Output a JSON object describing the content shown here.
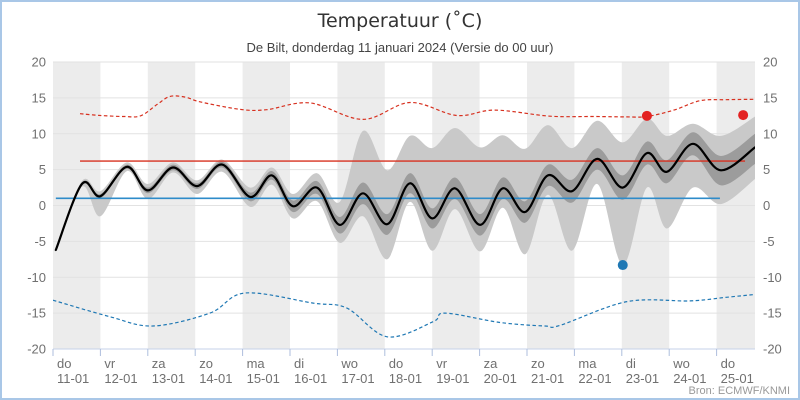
{
  "window": {
    "title": "Temperatuur (˚C)",
    "subtitle": "De Bilt, donderdag 11 januari 2024 (Versie do 00 uur)",
    "source": "Bron: ECMWF/KNMI"
  },
  "chart_data": {
    "type": "line",
    "title": "Temperatuur (˚C)",
    "subtitle": "De Bilt, donderdag 11 januari 2024 (Versie do 00 uur)",
    "source": "Bron: ECMWF/KNMI",
    "y_axis": {
      "min": -20,
      "max": 20,
      "tick_step": 5,
      "ticks": [
        20,
        15,
        10,
        5,
        0,
        -5,
        -10,
        -15,
        -20
      ],
      "sides": [
        "left",
        "right"
      ],
      "grid": true
    },
    "x_axis": {
      "ticks": [
        {
          "weekday": "do",
          "date": "11-01"
        },
        {
          "weekday": "vr",
          "date": "12-01"
        },
        {
          "weekday": "za",
          "date": "13-01"
        },
        {
          "weekday": "zo",
          "date": "14-01"
        },
        {
          "weekday": "ma",
          "date": "15-01"
        },
        {
          "weekday": "di",
          "date": "16-01"
        },
        {
          "weekday": "wo",
          "date": "17-01"
        },
        {
          "weekday": "do",
          "date": "18-01"
        },
        {
          "weekday": "vr",
          "date": "19-01"
        },
        {
          "weekday": "za",
          "date": "20-01"
        },
        {
          "weekday": "zo",
          "date": "21-01"
        },
        {
          "weekday": "ma",
          "date": "22-01"
        },
        {
          "weekday": "di",
          "date": "23-01"
        },
        {
          "weekday": "wo",
          "date": "24-01"
        },
        {
          "weekday": "do",
          "date": "25-01"
        }
      ],
      "range_days": [
        0,
        14.81
      ],
      "shaded_day_bands": "alternate starting do 11-01"
    },
    "series": {
      "ensemble": {
        "x_days": [
          0.06,
          0.61,
          1.0,
          1.56,
          2.0,
          2.53,
          3.04,
          3.57,
          4.16,
          4.62,
          5.06,
          5.57,
          6.05,
          6.54,
          7.05,
          7.53,
          8.0,
          8.48,
          9.01,
          9.49,
          9.96,
          10.44,
          10.95,
          11.48,
          12.02,
          12.53,
          12.95,
          13.5,
          14.09,
          14.81
        ],
        "median": [
          -6.2,
          3.0,
          1.3,
          5.4,
          2.1,
          5.3,
          2.7,
          5.7,
          1.2,
          4.2,
          -0.1,
          2.5,
          -2.7,
          1.7,
          -2.6,
          3.1,
          -1.8,
          2.4,
          -2.7,
          2.4,
          -0.9,
          4.2,
          2.0,
          6.5,
          2.5,
          7.3,
          4.7,
          8.6,
          4.9,
          8.1
        ],
        "inner_hi": [
          -6.1,
          3.2,
          1.6,
          5.7,
          2.5,
          5.7,
          3.1,
          6.1,
          1.8,
          4.8,
          0.7,
          3.4,
          -1.6,
          3.2,
          -1.2,
          4.5,
          -0.4,
          3.9,
          -1.2,
          3.9,
          0.6,
          5.7,
          3.6,
          8.0,
          4.2,
          8.9,
          6.3,
          10.2,
          6.9,
          10.0
        ],
        "inner_lo": [
          -6.3,
          2.8,
          1.0,
          5.1,
          1.7,
          4.9,
          2.3,
          5.3,
          0.6,
          3.6,
          -0.9,
          1.6,
          -3.9,
          0.2,
          -4.1,
          1.7,
          -3.2,
          0.9,
          -4.2,
          0.9,
          -2.4,
          2.7,
          0.4,
          5.0,
          0.8,
          5.7,
          3.1,
          7.0,
          2.8,
          5.8
        ],
        "outer_hi": [
          -6.0,
          3.4,
          2.0,
          6.0,
          3.0,
          6.0,
          3.5,
          6.4,
          2.5,
          5.3,
          1.6,
          4.5,
          0.5,
          10.4,
          4.9,
          9.7,
          8.0,
          10.8,
          8.1,
          9.8,
          7.9,
          11.2,
          8.0,
          11.8,
          8.8,
          12.1,
          9.7,
          11.4,
          9.7,
          12.4
        ],
        "outer_lo": [
          -6.4,
          2.6,
          -1.5,
          4.8,
          0.9,
          4.6,
          1.6,
          4.7,
          -0.2,
          2.9,
          -1.8,
          0.6,
          -5.2,
          -1.5,
          -7.5,
          0.5,
          -6.3,
          -0.5,
          -6.4,
          -0.3,
          -6.8,
          1.5,
          -6.3,
          3.0,
          -8.3,
          2.5,
          -3.2,
          2.5,
          0.2,
          3.7
        ]
      },
      "record_max": {
        "style": "dashed",
        "x_days": [
          0.57,
          1.0,
          1.5,
          1.85,
          2.2,
          2.47,
          2.8,
          3.1,
          3.95,
          4.51,
          5.42,
          6.54,
          7.53,
          8.52,
          9.32,
          10.49,
          11.4,
          12.1,
          12.53,
          13.1,
          13.65,
          14.2,
          14.81
        ],
        "values": [
          12.8,
          12.55,
          12.4,
          12.5,
          14.1,
          15.2,
          15.1,
          14.45,
          13.4,
          13.35,
          14.3,
          12.0,
          14.35,
          12.55,
          13.3,
          12.45,
          12.4,
          12.35,
          12.4,
          13.3,
          14.6,
          14.75,
          14.8
        ]
      },
      "record_min": {
        "style": "dashed",
        "x_days": [
          0.0,
          1.2,
          2.11,
          3.31,
          4.05,
          5.49,
          6.2,
          7.05,
          8.02,
          8.27,
          9.43,
          10.38,
          10.7,
          12.11,
          13.44,
          14.2,
          14.81
        ],
        "values": [
          -13.2,
          -15.5,
          -16.8,
          -15.0,
          -12.2,
          -13.6,
          -14.3,
          -18.3,
          -16.2,
          -15.0,
          -16.3,
          -16.8,
          -16.7,
          -13.4,
          -13.3,
          -12.8,
          -12.4
        ]
      },
      "climate_max": {
        "style": "solid",
        "x_days": [
          0.57,
          14.6
        ],
        "value": 6.2
      },
      "climate_min": {
        "style": "solid",
        "x_days": [
          0.06,
          14.07
        ],
        "value": 1.0
      }
    },
    "markers": {
      "red_dots": [
        {
          "x_day": 12.53,
          "value": 12.5
        },
        {
          "x_day": 14.56,
          "value": 12.6
        }
      ],
      "blue_dots": [
        {
          "x_day": 12.02,
          "value": -8.3
        }
      ]
    },
    "colors": {
      "red_line": "#d7301f",
      "red_dot": "#e32222",
      "blue_dashed": "#1f78b4",
      "blue_solid": "#2e8bc9",
      "blue_dot": "#1f78b4",
      "median": "#000000",
      "inner_band": "#9c9c9c",
      "outer_band": "#c9c9c9",
      "day_band": "#ececec",
      "grid": "#e2e2e2",
      "axis_line": "#c6d2e8",
      "tick_mark": "#aebedd",
      "axis_label": "#707070",
      "frame_border": "#a9c7e7"
    }
  }
}
